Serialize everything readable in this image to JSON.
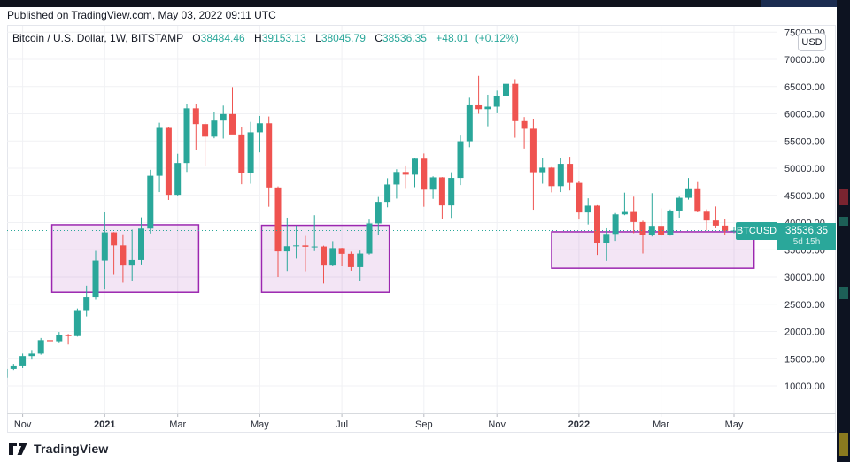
{
  "top_bar": {
    "published_text": "Published on TradingView.com, May 03, 2022 09:11 UTC"
  },
  "header": {
    "symbol_title": "Bitcoin / U.S. Dollar, 1W, BITSTAMP",
    "ohlc": {
      "o_label": "O",
      "o_value": "38484.46",
      "h_label": "H",
      "h_value": "39153.13",
      "l_label": "L",
      "l_value": "38045.79",
      "c_label": "C",
      "c_value": "38536.35",
      "change": "+48.01",
      "change_pct": "(+0.12%)"
    }
  },
  "price_axis": {
    "unit_button": "USD"
  },
  "price_line": {
    "tag": "BTCUSD",
    "value": "38536.35",
    "countdown": "5d 15h",
    "price": 38536.35
  },
  "footer": {
    "brand": "TradingView"
  },
  "colors": {
    "up": "#2aa79a",
    "down": "#ef5350",
    "box_fill": "rgba(156,39,176,0.12)",
    "box_stroke": "#9c27b0",
    "price_line": "#2aa79a",
    "grid": "#f0f1f4",
    "axis_text": "#2a2e39",
    "separator": "#d7dade"
  },
  "chart_data": {
    "type": "candlestick",
    "title": "Bitcoin / U.S. Dollar",
    "timeframe": "1W",
    "exchange": "BITSTAMP",
    "y_range": [
      10000,
      75000
    ],
    "y_ticks": [
      10000,
      15000,
      20000,
      25000,
      30000,
      35000,
      40000,
      45000,
      50000,
      55000,
      60000,
      65000,
      70000,
      75000
    ],
    "x_ticks": [
      {
        "week": 2,
        "label": "Nov",
        "bold": false
      },
      {
        "week": 11,
        "label": "2021",
        "bold": true
      },
      {
        "week": 19,
        "label": "Mar",
        "bold": false
      },
      {
        "week": 28,
        "label": "May",
        "bold": false
      },
      {
        "week": 37,
        "label": "Jul",
        "bold": false
      },
      {
        "week": 46,
        "label": "Sep",
        "bold": false
      },
      {
        "week": 54,
        "label": "Nov",
        "bold": false
      },
      {
        "week": 63,
        "label": "2022",
        "bold": true
      },
      {
        "week": 72,
        "label": "Mar",
        "bold": false
      },
      {
        "week": 80,
        "label": "May",
        "bold": false
      }
    ],
    "candles": [
      [
        11500,
        13250,
        11400,
        13100
      ],
      [
        13100,
        14050,
        12900,
        13750
      ],
      [
        13750,
        15950,
        13250,
        15500
      ],
      [
        15500,
        16450,
        14850,
        15950
      ],
      [
        15950,
        18800,
        15750,
        18400
      ],
      [
        18400,
        19450,
        16250,
        18200
      ],
      [
        18200,
        19900,
        18000,
        19350
      ],
      [
        19350,
        19550,
        17600,
        19150
      ],
      [
        19150,
        24200,
        19050,
        23900
      ],
      [
        23900,
        28400,
        22750,
        26250
      ],
      [
        26250,
        34800,
        25850,
        33000
      ],
      [
        33000,
        41950,
        27700,
        38200
      ],
      [
        38200,
        38250,
        30400,
        35800
      ],
      [
        35800,
        37850,
        28950,
        32250
      ],
      [
        32250,
        38700,
        29250,
        33100
      ],
      [
        33100,
        40950,
        32300,
        38900
      ],
      [
        38900,
        49700,
        38000,
        48600
      ],
      [
        48600,
        58350,
        45600,
        57400
      ],
      [
        57400,
        57500,
        44150,
        45100
      ],
      [
        45100,
        52650,
        44950,
        50950
      ],
      [
        50950,
        61800,
        49300,
        61000
      ],
      [
        61000,
        61850,
        53250,
        58100
      ],
      [
        58100,
        58450,
        50450,
        55800
      ],
      [
        55800,
        60250,
        55500,
        58750
      ],
      [
        58750,
        61500,
        55450,
        59950
      ],
      [
        59950,
        64900,
        59550,
        56200
      ],
      [
        56200,
        57550,
        47050,
        49100
      ],
      [
        49100,
        58500,
        47150,
        56600
      ],
      [
        56600,
        59600,
        52900,
        58250
      ],
      [
        58250,
        59500,
        42900,
        46450
      ],
      [
        46450,
        46650,
        30000,
        34700
      ],
      [
        34700,
        40900,
        31100,
        35650
      ],
      [
        35650,
        39450,
        33350,
        35800
      ],
      [
        35800,
        37550,
        31050,
        35550
      ],
      [
        35550,
        41350,
        34750,
        35600
      ],
      [
        35600,
        35750,
        28800,
        32250
      ],
      [
        32250,
        36600,
        32000,
        35300
      ],
      [
        35300,
        35350,
        32100,
        34250
      ],
      [
        34250,
        34650,
        31150,
        31800
      ],
      [
        31800,
        34850,
        29300,
        34300
      ],
      [
        34300,
        40550,
        34100,
        39850
      ],
      [
        39850,
        44700,
        37650,
        43800
      ],
      [
        43800,
        48150,
        42800,
        47000
      ],
      [
        47000,
        49800,
        44400,
        49300
      ],
      [
        49300,
        50500,
        46350,
        48800
      ],
      [
        48800,
        51900,
        46500,
        51750
      ],
      [
        51750,
        52700,
        42900,
        46050
      ],
      [
        46050,
        48500,
        44350,
        48300
      ],
      [
        48300,
        48350,
        40650,
        43150
      ],
      [
        43150,
        49250,
        40850,
        48200
      ],
      [
        48200,
        56000,
        46900,
        54950
      ],
      [
        54950,
        62950,
        53850,
        61550
      ],
      [
        61550,
        66950,
        60000,
        60850
      ],
      [
        60850,
        63500,
        57700,
        61300
      ],
      [
        61300,
        64250,
        60100,
        63250
      ],
      [
        63250,
        68950,
        62300,
        65500
      ],
      [
        65500,
        66350,
        55600,
        58650
      ],
      [
        58650,
        59400,
        53600,
        57250
      ],
      [
        57250,
        59050,
        42350,
        49250
      ],
      [
        49250,
        51950,
        47150,
        50100
      ],
      [
        50100,
        50200,
        45550,
        46700
      ],
      [
        46700,
        51900,
        45600,
        50800
      ],
      [
        50800,
        52100,
        45900,
        47300
      ],
      [
        47300,
        47600,
        40550,
        41850
      ],
      [
        41850,
        44450,
        39650,
        43100
      ],
      [
        43100,
        43200,
        34050,
        36250
      ],
      [
        36250,
        38950,
        32950,
        37920
      ],
      [
        37920,
        41750,
        36650,
        41500
      ],
      [
        41500,
        45500,
        41350,
        42100
      ],
      [
        42100,
        44750,
        38050,
        40100
      ],
      [
        40100,
        40350,
        34300,
        37700
      ],
      [
        37700,
        45400,
        37450,
        39400
      ],
      [
        39400,
        42600,
        37550,
        37800
      ],
      [
        37800,
        42400,
        37600,
        42200
      ],
      [
        42200,
        44750,
        40900,
        44540
      ],
      [
        44540,
        48200,
        44200,
        46300
      ],
      [
        46300,
        47450,
        41900,
        42150
      ],
      [
        42150,
        42420,
        38550,
        40380
      ],
      [
        40380,
        42950,
        38950,
        39450
      ],
      [
        39450,
        40650,
        37700,
        38470
      ],
      [
        38484.46,
        39153.13,
        38045.79,
        38536.35
      ]
    ],
    "boxes": [
      {
        "week_start": 5.2,
        "week_end": 21.3,
        "price_top": 39600,
        "price_bottom": 27200
      },
      {
        "week_start": 28.2,
        "week_end": 42.2,
        "price_top": 39500,
        "price_bottom": 27200
      },
      {
        "week_start": 60.0,
        "week_end": 82.2,
        "price_top": 38300,
        "price_bottom": 31600
      }
    ],
    "grid": true,
    "legend_position": "none"
  }
}
